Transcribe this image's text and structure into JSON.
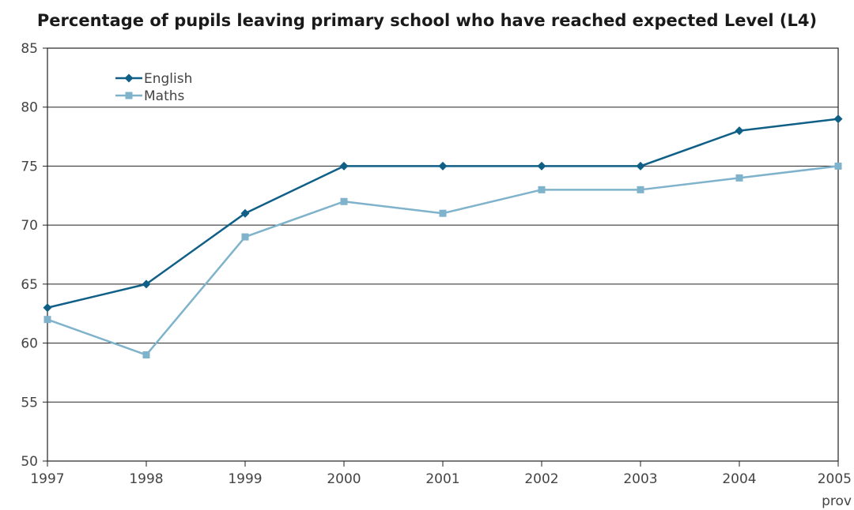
{
  "chart_data": {
    "type": "line",
    "title": "Percentage of pupils leaving primary school who have reached expected Level (L4)",
    "xlabel": "",
    "ylabel": "",
    "categories": [
      "1997",
      "1998",
      "1999",
      "2000",
      "2001",
      "2002",
      "2003",
      "2004",
      "2005"
    ],
    "category_sublabels": [
      "",
      "",
      "",
      "",
      "",
      "",
      "",
      "",
      "prov"
    ],
    "series": [
      {
        "name": "English",
        "values": [
          63,
          65,
          71,
          75,
          75,
          75,
          75,
          78,
          79
        ],
        "color": "#0f5f87",
        "marker": "diamond"
      },
      {
        "name": "Maths",
        "values": [
          62,
          59,
          69,
          72,
          71,
          73,
          73,
          74,
          75
        ],
        "color": "#7fb2cb",
        "marker": "square"
      }
    ],
    "ylim": [
      50,
      85
    ],
    "yticks": [
      50,
      55,
      60,
      65,
      70,
      75,
      80,
      85
    ],
    "grid": true,
    "legend_position": "top-left"
  }
}
